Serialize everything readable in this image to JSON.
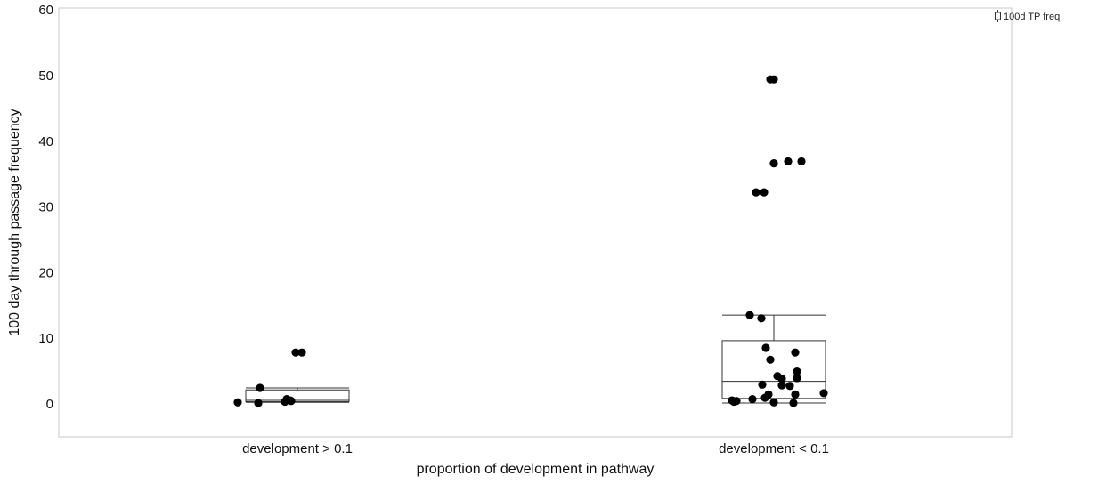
{
  "chart_data": {
    "type": "box",
    "xlabel": "proportion of development in pathway",
    "ylabel": "100 day through passage frequency",
    "ylim": [
      -5,
      60
    ],
    "yticks": [
      0,
      10,
      20,
      30,
      40,
      50,
      60
    ],
    "grid": false,
    "legend": {
      "placement": "top-right",
      "entries": [
        "100d TP freq"
      ]
    },
    "categories": [
      "development > 0.1",
      "development < 0.1"
    ],
    "boxes": [
      {
        "category": "development > 0.1",
        "whisker_low": 0.1,
        "q1": 0.2,
        "median": 0.4,
        "q3": 2.0,
        "whisker_high": 2.3
      },
      {
        "category": "development < 0.1",
        "whisker_low": 0.0,
        "q1": 0.7,
        "median": 3.3,
        "q3": 9.5,
        "whisker_high": 13.4
      }
    ],
    "points": [
      {
        "category": "development > 0.1",
        "values": [
          0.1,
          0.0,
          2.3,
          0.6,
          0.4,
          0.2,
          0.3,
          7.7,
          7.7
        ]
      },
      {
        "category": "development < 0.1",
        "values": [
          49.3,
          49.3,
          36.8,
          36.8,
          36.5,
          32.1,
          32.1,
          13.4,
          12.9,
          8.4,
          7.7,
          6.6,
          4.8,
          4.1,
          3.8,
          3.7,
          2.8,
          2.7,
          2.6,
          1.5,
          1.3,
          1.3,
          0.8,
          0.6,
          0.4,
          0.3,
          0.2,
          0.1,
          0.0
        ]
      }
    ]
  }
}
